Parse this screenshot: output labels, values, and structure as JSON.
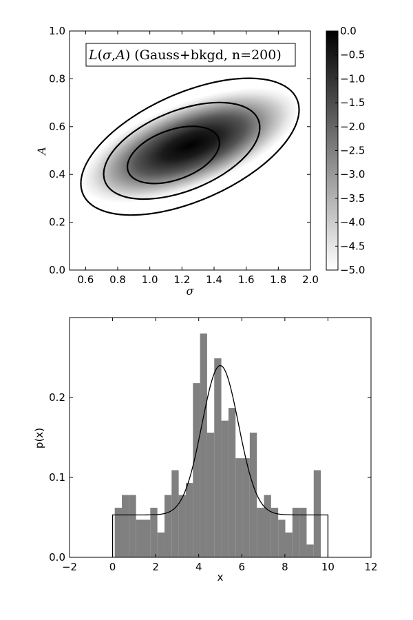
{
  "chart_data": [
    {
      "type": "heatmap",
      "title": "L(σ,A) (Gauss+bkgd, n=200)",
      "title_parts": {
        "L": "L",
        "open": "(",
        "sigma": "σ",
        "comma": ",",
        "A": "A",
        "close": ")",
        "rest": " (Gauss+bkgd, n=200)"
      },
      "xlabel": "σ",
      "ylabel": "A",
      "xlim": [
        0.5,
        2.0
      ],
      "ylim": [
        0.0,
        1.0
      ],
      "xticks": [
        0.6,
        0.8,
        1.0,
        1.2,
        1.4,
        1.6,
        1.8,
        2.0
      ],
      "xtick_labels": [
        "0.6",
        "0.8",
        "1.0",
        "1.2",
        "1.4",
        "1.6",
        "1.8",
        "2.0"
      ],
      "yticks": [
        0.0,
        0.2,
        0.4,
        0.6,
        0.8,
        1.0
      ],
      "ytick_labels": [
        "0.0",
        "0.2",
        "0.4",
        "0.6",
        "0.8",
        "1.0"
      ],
      "colormap": "binary",
      "color_range": [
        -5.0,
        0.0
      ],
      "colorbar_ticks": [
        0.0,
        -0.5,
        -1.0,
        -1.5,
        -2.0,
        -2.5,
        -3.0,
        -3.5,
        -4.0,
        -4.5,
        -5.0
      ],
      "colorbar_labels": [
        "0.0",
        "−0.5",
        "−1.0",
        "−1.5",
        "−2.0",
        "−2.5",
        "−3.0",
        "−3.5",
        "−4.0",
        "−4.5",
        "−5.0"
      ],
      "peak": {
        "sigma": 1.13,
        "A": 0.47
      },
      "contour_levels": [
        "1σ",
        "2σ",
        "3σ"
      ]
    },
    {
      "type": "bar",
      "xlabel": "x",
      "ylabel": "p(x)",
      "xlim": [
        -2,
        12
      ],
      "ylim": [
        0.0,
        0.3
      ],
      "xticks": [
        -2,
        0,
        2,
        4,
        6,
        8,
        10,
        12
      ],
      "xtick_labels": [
        "−2",
        "0",
        "2",
        "4",
        "6",
        "8",
        "10",
        "12"
      ],
      "yticks": [
        0.0,
        0.1,
        0.2
      ],
      "ytick_labels": [
        "0.0",
        "0.1",
        "0.2"
      ],
      "bar_color": "#808080",
      "histogram": {
        "bin_edges": [
          0.1,
          0.43,
          0.76,
          1.09,
          1.42,
          1.75,
          2.08,
          2.41,
          2.74,
          3.07,
          3.4,
          3.73,
          4.06,
          4.39,
          4.72,
          5.05,
          5.38,
          5.71,
          6.04,
          6.37,
          6.7,
          7.03,
          7.36,
          7.69,
          8.02,
          8.35,
          8.68,
          9.01,
          9.34,
          9.67,
          10.0
        ],
        "values": [
          0.062,
          0.078,
          0.078,
          0.047,
          0.047,
          0.062,
          0.031,
          0.078,
          0.109,
          0.078,
          0.093,
          0.218,
          0.28,
          0.156,
          0.249,
          0.171,
          0.187,
          0.124,
          0.124,
          0.156,
          0.062,
          0.078,
          0.062,
          0.047,
          0.031,
          0.062,
          0.062,
          0.016,
          0.109,
          0.0
        ]
      },
      "model_curve": {
        "type": "gaussian+background",
        "mu": 5.0,
        "sigma": 0.85,
        "amplitude": 0.187,
        "background": 0.053,
        "x_range": [
          0,
          10
        ]
      }
    }
  ]
}
